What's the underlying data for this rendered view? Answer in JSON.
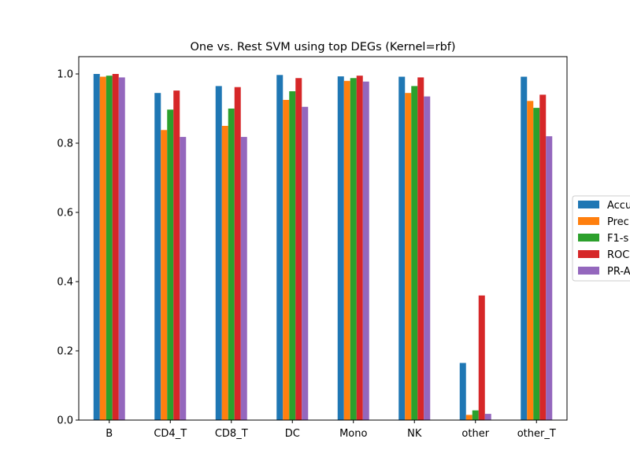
{
  "chart_data": {
    "type": "bar",
    "title": "One vs. Rest SVM using top DEGs (Kernel=rbf)",
    "xlabel": "",
    "ylabel": "",
    "ylim": [
      0,
      1.05
    ],
    "yticks": [
      "0.0",
      "0.2",
      "0.4",
      "0.6",
      "0.8",
      "1.0"
    ],
    "ytick_values": [
      0,
      0.2,
      0.4,
      0.6,
      0.8,
      1.0
    ],
    "categories": [
      "B",
      "CD4_T",
      "CD8_T",
      "DC",
      "Mono",
      "NK",
      "other",
      "other_T"
    ],
    "legend_position": "right (clipped)",
    "series": [
      {
        "name": "Accu",
        "color": "#1f77b4",
        "values": [
          1.0,
          0.945,
          0.965,
          0.997,
          0.993,
          0.992,
          0.165,
          0.992
        ]
      },
      {
        "name": "Prec",
        "color": "#ff7f0e",
        "values": [
          0.992,
          0.838,
          0.85,
          0.925,
          0.98,
          0.945,
          0.015,
          0.922
        ]
      },
      {
        "name": "F1-s",
        "color": "#2ca02c",
        "values": [
          0.995,
          0.897,
          0.9,
          0.95,
          0.988,
          0.965,
          0.028,
          0.902
        ]
      },
      {
        "name": "ROC",
        "color": "#d62728",
        "values": [
          1.0,
          0.952,
          0.962,
          0.988,
          0.995,
          0.99,
          0.36,
          0.94
        ]
      },
      {
        "name": "PR-A",
        "color": "#9467bd",
        "values": [
          0.99,
          0.818,
          0.818,
          0.905,
          0.978,
          0.935,
          0.018,
          0.82
        ]
      }
    ]
  }
}
